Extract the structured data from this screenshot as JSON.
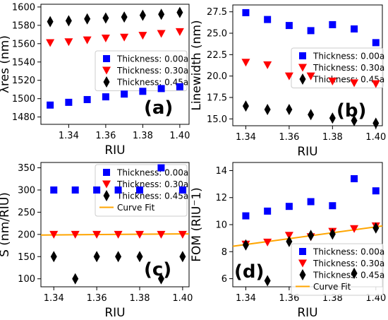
{
  "chart_data": [
    {
      "type": "scatter",
      "panel_label": "(a)",
      "xlabel": "RIU",
      "ylabel": "λres (nm)",
      "x": [
        1.33,
        1.34,
        1.35,
        1.36,
        1.37,
        1.38,
        1.39,
        1.4
      ],
      "xlim": [
        1.325,
        1.405
      ],
      "ylim": [
        1472,
        1603
      ],
      "xticks": [
        1.34,
        1.36,
        1.38,
        1.4
      ],
      "xtick_labels": [
        "1.34",
        "1.36",
        "1.38",
        "1.40"
      ],
      "yticks": [
        1480,
        1500,
        1520,
        1540,
        1560,
        1580,
        1600
      ],
      "ytick_labels": [
        "1480",
        "1500",
        "1520",
        "1540",
        "1560",
        "1580",
        "1600"
      ],
      "legend_position": "center-right",
      "series": [
        {
          "name": "Thickness: 0.00a",
          "marker": "square",
          "color": "#0000ff",
          "values": [
            1493,
            1496,
            1499,
            1502,
            1505,
            1508,
            1511,
            1513
          ]
        },
        {
          "name": "Thickness: 0.30a",
          "marker": "triangle-down",
          "color": "#ff0000",
          "values": [
            1561,
            1562,
            1564,
            1566,
            1567,
            1569,
            1571,
            1573
          ]
        },
        {
          "name": "Thickness: 0.45a",
          "marker": "diamond",
          "color": "#000000",
          "values": [
            1584,
            1585,
            1587,
            1588,
            1589,
            1591,
            1592,
            1594
          ]
        }
      ]
    },
    {
      "type": "scatter",
      "panel_label": "(b)",
      "xlabel": "RIU",
      "ylabel": "Linewidth (nm)",
      "x": [
        1.34,
        1.35,
        1.36,
        1.37,
        1.38,
        1.39,
        1.4
      ],
      "xlim": [
        1.334,
        1.403
      ],
      "ylim": [
        14.2,
        28.3
      ],
      "xticks": [
        1.34,
        1.36,
        1.38,
        1.4
      ],
      "xtick_labels": [
        "1.34",
        "1.36",
        "1.38",
        "1.40"
      ],
      "yticks": [
        15.0,
        17.5,
        20.0,
        22.5,
        25.0,
        27.5
      ],
      "ytick_labels": [
        "15.0",
        "17.5",
        "20.0",
        "22.5",
        "25.0",
        "27.5"
      ],
      "legend_position": "upper-right",
      "series": [
        {
          "name": "Thickness: 0.00a",
          "marker": "square",
          "color": "#0000ff",
          "values": [
            27.4,
            26.6,
            25.9,
            25.3,
            26.0,
            25.5,
            23.9
          ]
        },
        {
          "name": "Thickness: 0.30a",
          "marker": "triangle-down",
          "color": "#ff0000",
          "values": [
            21.6,
            21.3,
            20.0,
            20.0,
            19.4,
            19.2,
            19.1
          ]
        },
        {
          "name": "Thickness: 0.45a",
          "marker": "diamond",
          "color": "#000000",
          "values": [
            16.5,
            16.1,
            16.1,
            15.5,
            15.1,
            14.8,
            14.5
          ]
        }
      ]
    },
    {
      "type": "scatter",
      "panel_label": "(c)",
      "xlabel": "RIU",
      "ylabel": "S (nm/RIU)",
      "x": [
        1.34,
        1.35,
        1.36,
        1.37,
        1.38,
        1.39,
        1.4
      ],
      "xlim": [
        1.334,
        1.403
      ],
      "ylim": [
        82,
        362
      ],
      "xticks": [
        1.34,
        1.36,
        1.38,
        1.4
      ],
      "xtick_labels": [
        "1.34",
        "1.36",
        "1.38",
        "1.40"
      ],
      "yticks": [
        100,
        150,
        200,
        250,
        300,
        350
      ],
      "ytick_labels": [
        "100",
        "150",
        "200",
        "250",
        "300",
        "350"
      ],
      "legend_position": "upper-right",
      "series": [
        {
          "name": "Thickness: 0.00a",
          "marker": "square",
          "color": "#0000ff",
          "values": [
            300,
            300,
            300,
            300,
            300,
            350,
            300
          ]
        },
        {
          "name": "Thickness: 0.30a",
          "marker": "triangle-down",
          "color": "#ff0000",
          "values": [
            200,
            200,
            200,
            200,
            200,
            200,
            200
          ]
        },
        {
          "name": "Thickness: 0.45a",
          "marker": "diamond",
          "color": "#000000",
          "values": [
            150,
            100,
            150,
            150,
            150,
            100,
            150
          ]
        }
      ],
      "fit": {
        "name": "Curve Fit",
        "color": "#ffa500",
        "x": [
          1.334,
          1.403
        ],
        "values": [
          198.6,
          201.2
        ]
      }
    },
    {
      "type": "scatter",
      "panel_label": "(d)",
      "xlabel": "RIU",
      "ylabel": "FOM (RIU⁻1)",
      "x": [
        1.34,
        1.35,
        1.36,
        1.37,
        1.38,
        1.39,
        1.4
      ],
      "xlim": [
        1.334,
        1.403
      ],
      "ylim": [
        5.4,
        14.6
      ],
      "xticks": [
        1.34,
        1.36,
        1.38,
        1.4
      ],
      "xtick_labels": [
        "1.34",
        "1.36",
        "1.38",
        "1.40"
      ],
      "yticks": [
        6,
        8,
        10,
        12,
        14
      ],
      "ytick_labels": [
        "6",
        "8",
        "10",
        "12",
        "14"
      ],
      "legend_position": "lower-right",
      "series": [
        {
          "name": "Thickness: 0.00a",
          "marker": "square",
          "color": "#0000ff",
          "values": [
            10.65,
            11.0,
            11.35,
            11.7,
            11.4,
            13.4,
            12.5
          ]
        },
        {
          "name": "Thickness: 0.30a",
          "marker": "triangle-down",
          "color": "#ff0000",
          "values": [
            8.55,
            8.7,
            9.2,
            9.1,
            9.5,
            9.7,
            9.9
          ]
        },
        {
          "name": "Thickness: 0.45a",
          "marker": "diamond",
          "color": "#000000",
          "values": [
            8.5,
            5.85,
            8.75,
            9.2,
            9.3,
            6.4,
            9.75
          ]
        }
      ],
      "fit": {
        "name": "Curve Fit",
        "color": "#ffa500",
        "x": [
          1.334,
          1.403
        ],
        "values": [
          8.4,
          9.9
        ]
      }
    }
  ]
}
